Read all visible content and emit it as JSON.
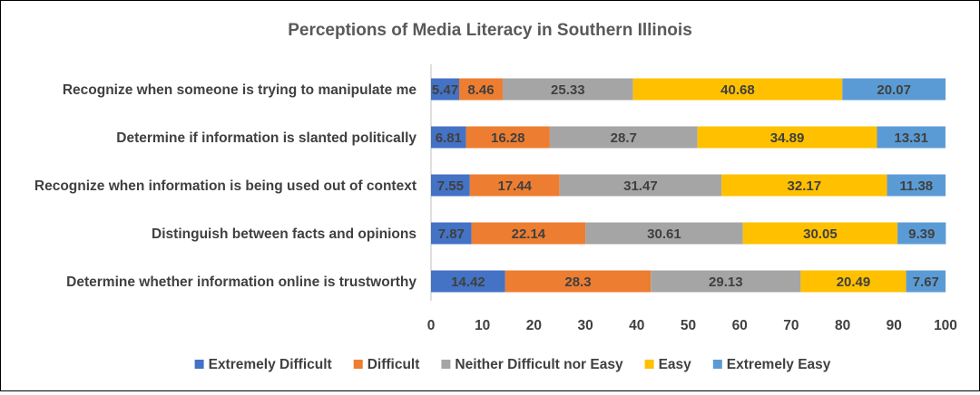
{
  "chart_data": {
    "type": "bar",
    "orientation": "horizontal",
    "stacked": true,
    "title": "Perceptions of Media Literacy in Southern Illinois",
    "xlabel": "",
    "ylabel": "",
    "xlim": [
      0,
      100
    ],
    "xticks": [
      0,
      10,
      20,
      30,
      40,
      50,
      60,
      70,
      80,
      90,
      100
    ],
    "grid": false,
    "legend_position": "bottom",
    "categories": [
      "Recognize when someone is trying to manipulate me",
      "Determine if information is slanted politically",
      "Recognize when information is being used out of context",
      "Distinguish between facts and opinions",
      "Determine whether information online is trustworthy"
    ],
    "series": [
      {
        "name": "Extremely Difficult",
        "color": "#4472C4",
        "values": [
          5.47,
          6.81,
          7.55,
          7.87,
          14.42
        ],
        "labels": [
          "5.47",
          "6.81",
          "7.55",
          "7.87",
          "14.42"
        ]
      },
      {
        "name": "Difficult",
        "color": "#ED7D31",
        "values": [
          8.46,
          16.28,
          17.44,
          22.14,
          28.3
        ],
        "labels": [
          "8.46",
          "16.28",
          "17.44",
          "22.14",
          "28.3"
        ]
      },
      {
        "name": "Neither Difficult nor Easy",
        "color": "#A5A5A5",
        "values": [
          25.33,
          28.7,
          31.47,
          30.61,
          29.13
        ],
        "labels": [
          "25.33",
          "28.7",
          "31.47",
          "30.61",
          "29.13"
        ]
      },
      {
        "name": "Easy",
        "color": "#FFC000",
        "values": [
          40.68,
          34.89,
          32.17,
          30.05,
          20.49
        ],
        "labels": [
          "40.68",
          "34.89",
          "32.17",
          "30.05",
          "20.49"
        ]
      },
      {
        "name": "Extremely Easy",
        "color": "#5B9BD5",
        "values": [
          20.07,
          13.31,
          11.38,
          9.39,
          7.67
        ],
        "labels": [
          "20.07",
          "13.31",
          "11.38",
          "9.39",
          "7.67"
        ]
      }
    ]
  }
}
